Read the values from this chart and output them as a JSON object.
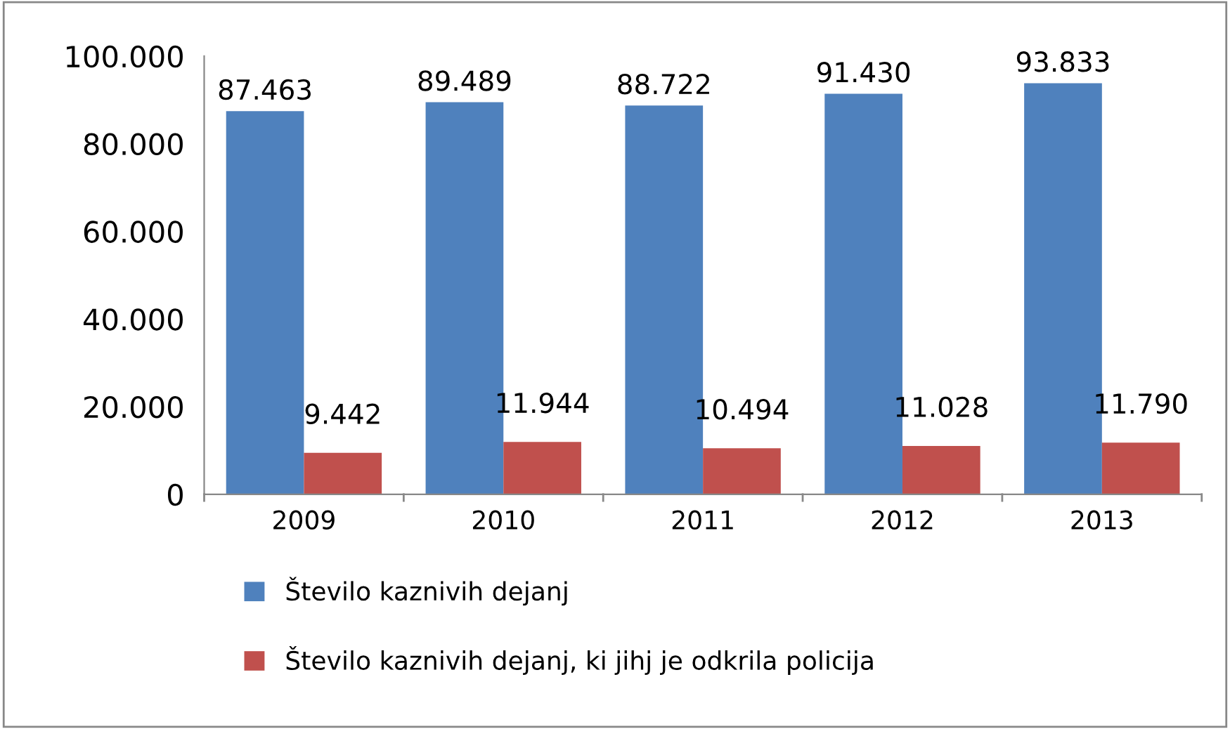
{
  "chart_data": {
    "type": "bar",
    "categories": [
      "2009",
      "2010",
      "2011",
      "2012",
      "2013"
    ],
    "series": [
      {
        "name": "Število kaznivih dejanj",
        "color": "#4f81bd",
        "values": [
          87463,
          89489,
          88722,
          91430,
          93833
        ],
        "value_labels": [
          "87.463",
          "89.489",
          "88.722",
          "91.430",
          "93.833"
        ]
      },
      {
        "name": "Število kaznivih dejanj, ki jihj je odkrila policija",
        "color": "#c0504d",
        "values": [
          9442,
          11944,
          10494,
          11028,
          11790
        ],
        "value_labels": [
          "9.442",
          "11.944",
          "10.494",
          "11.028",
          "11.790"
        ]
      }
    ],
    "ylim": [
      0,
      100000
    ],
    "yticks": [
      0,
      {
        "value": 20000,
        "label": "20.000"
      },
      {
        "value": 40000,
        "label": "40.000"
      },
      {
        "value": 60000,
        "label": "60.000"
      },
      {
        "value": 80000,
        "label": "80.000"
      },
      {
        "value": 100000,
        "label": "100.000"
      }
    ],
    "grid": false,
    "legend": "bottom"
  }
}
